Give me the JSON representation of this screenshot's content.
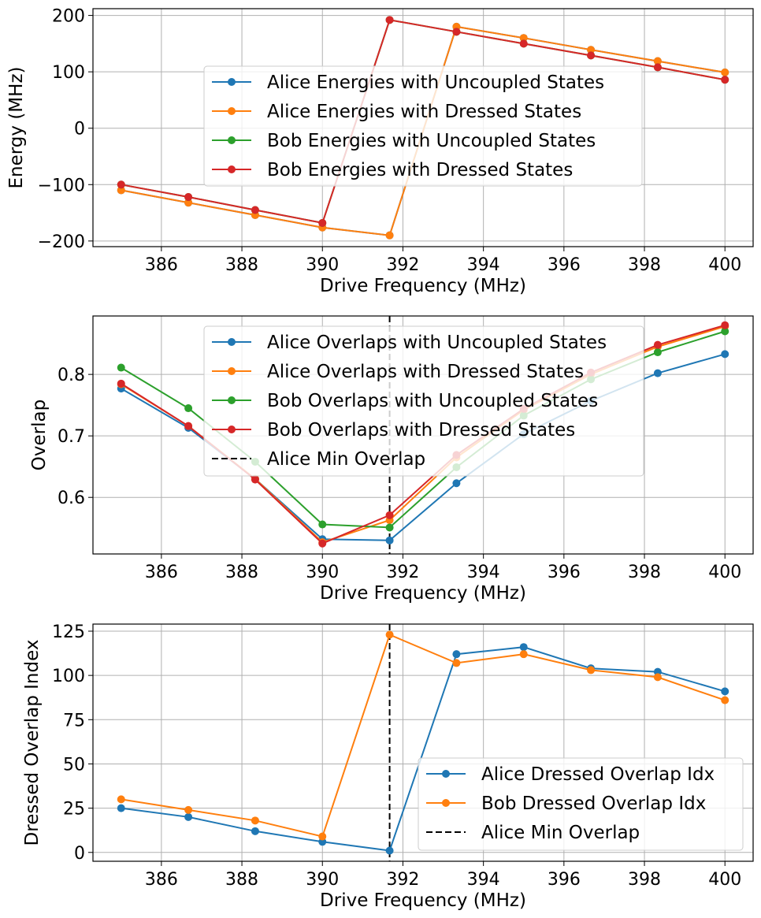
{
  "chart_data": [
    {
      "type": "line",
      "xlabel": "Drive Frequency (MHz)",
      "ylabel": "Energy (MHz)",
      "xlim": [
        384.3,
        400.7
      ],
      "ylim": [
        -210,
        212
      ],
      "xticks": [
        "386",
        "388",
        "390",
        "392",
        "394",
        "396",
        "398",
        "400"
      ],
      "yticks": [
        "−200",
        "−100",
        "0",
        "100",
        "200"
      ],
      "grid": true,
      "legend_position": "upper center",
      "x": [
        385,
        386.67,
        388.33,
        390,
        391.67,
        393.33,
        395,
        396.67,
        398.33,
        400
      ],
      "series": [
        {
          "name": "Alice Energies with Uncoupled States",
          "color": "#1f77b4",
          "values": [
            -110,
            -132,
            -154,
            -176,
            -190,
            180,
            160,
            139,
            119,
            99
          ]
        },
        {
          "name": "Alice Energies with Dressed States",
          "color": "#ff7f0e",
          "values": [
            -110,
            -132,
            -154,
            -176,
            -190,
            180,
            160,
            139,
            119,
            99
          ]
        },
        {
          "name": "Bob Energies with Uncoupled States",
          "color": "#2ca02c",
          "values": [
            -100,
            -122,
            -145,
            -168,
            192,
            171,
            150,
            129,
            108,
            86
          ]
        },
        {
          "name": "Bob Energies with Dressed States",
          "color": "#d62728",
          "values": [
            -100,
            -122,
            -145,
            -168,
            192,
            171,
            150,
            129,
            108,
            86
          ]
        }
      ]
    },
    {
      "type": "line",
      "xlabel": "Drive Frequency (MHz)",
      "ylabel": "Overlap",
      "xlim": [
        384.3,
        400.7
      ],
      "ylim": [
        0.508,
        0.895
      ],
      "xticks": [
        "386",
        "388",
        "390",
        "392",
        "394",
        "396",
        "398",
        "400"
      ],
      "yticks": [
        "0.6",
        "0.7",
        "0.8"
      ],
      "grid": true,
      "legend_position": "upper center",
      "x": [
        385,
        386.67,
        388.33,
        390,
        391.67,
        393.33,
        395,
        396.67,
        398.33,
        400
      ],
      "series": [
        {
          "name": "Alice Overlaps with Uncoupled States",
          "color": "#1f77b4",
          "values": [
            0.777,
            0.713,
            0.63,
            0.532,
            0.53,
            0.623,
            0.703,
            0.757,
            0.802,
            0.833
          ]
        },
        {
          "name": "Alice Overlaps with Dressed States",
          "color": "#ff7f0e",
          "values": [
            0.784,
            0.716,
            0.63,
            0.527,
            0.563,
            0.665,
            0.742,
            0.8,
            0.845,
            0.878
          ]
        },
        {
          "name": "Bob Overlaps with Uncoupled States",
          "color": "#2ca02c",
          "values": [
            0.811,
            0.745,
            0.658,
            0.556,
            0.551,
            0.649,
            0.733,
            0.792,
            0.836,
            0.87
          ]
        },
        {
          "name": "Bob Overlaps with Dressed States",
          "color": "#d62728",
          "values": [
            0.785,
            0.716,
            0.629,
            0.525,
            0.571,
            0.669,
            0.744,
            0.803,
            0.848,
            0.88
          ]
        }
      ],
      "vline": {
        "name": "Alice Min Overlap",
        "x": 391.67,
        "color": "#000000"
      }
    },
    {
      "type": "line",
      "xlabel": "Drive Frequency (MHz)",
      "ylabel": "Dressed Overlap Index",
      "xlim": [
        384.3,
        400.7
      ],
      "ylim": [
        -5,
        129
      ],
      "xticks": [
        "386",
        "388",
        "390",
        "392",
        "394",
        "396",
        "398",
        "400"
      ],
      "yticks": [
        "0",
        "25",
        "50",
        "75",
        "100",
        "125"
      ],
      "grid": true,
      "legend_position": "lower right",
      "x": [
        385,
        386.67,
        388.33,
        390,
        391.67,
        393.33,
        395,
        396.67,
        398.33,
        400
      ],
      "series": [
        {
          "name": "Alice Dressed Overlap Idx",
          "color": "#1f77b4",
          "values": [
            25,
            20,
            12,
            6,
            1,
            112,
            116,
            104,
            102,
            91
          ]
        },
        {
          "name": "Bob Dressed Overlap Idx",
          "color": "#ff7f0e",
          "values": [
            30,
            24,
            18,
            9,
            123,
            107,
            112,
            103,
            99,
            86
          ]
        }
      ],
      "vline": {
        "name": "Alice Min Overlap",
        "x": 391.67,
        "color": "#000000"
      }
    }
  ]
}
